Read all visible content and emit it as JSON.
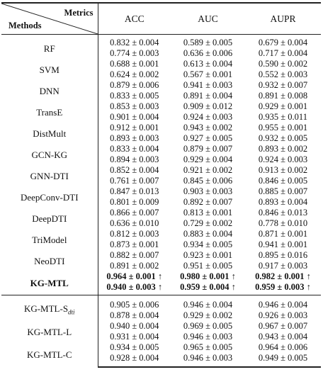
{
  "header": {
    "metrics_label": "Metrics",
    "methods_label": "Methods",
    "columns": [
      "ACC",
      "AUC",
      "AUPR"
    ]
  },
  "main_rows": [
    {
      "method": "RF",
      "values": [
        [
          "0.832 ± 0.004",
          "0.589 ± 0.005",
          "0.679 ± 0.004"
        ],
        [
          "0.774 ± 0.003",
          "0.636 ± 0.006",
          "0.717 ± 0.004"
        ]
      ]
    },
    {
      "method": "SVM",
      "values": [
        [
          "0.688 ± 0.001",
          "0.613 ± 0.004",
          "0.590 ± 0.002"
        ],
        [
          "0.624 ± 0.002",
          "0.567 ± 0.001",
          "0.552 ± 0.003"
        ]
      ]
    },
    {
      "method": "DNN",
      "values": [
        [
          "0.879 ± 0.006",
          "0.941 ± 0.003",
          "0.932 ± 0.007"
        ],
        [
          "0.833 ± 0.005",
          "0.891 ± 0.004",
          "0.891 ± 0.008"
        ]
      ]
    },
    {
      "method": "TransE",
      "values": [
        [
          "0.853 ± 0.003",
          "0.909 ± 0.012",
          "0.929 ± 0.001"
        ],
        [
          "0.901 ± 0.004",
          "0.924 ± 0.003",
          "0.935 ± 0.011"
        ]
      ]
    },
    {
      "method": "DistMult",
      "values": [
        [
          "0.912 ± 0.001",
          "0.943 ± 0.002",
          "0.955 ± 0.001"
        ],
        [
          "0.893 ± 0.003",
          "0.927 ± 0.005",
          "0.932 ± 0.005"
        ]
      ]
    },
    {
      "method": "GCN-KG",
      "values": [
        [
          "0.833 ± 0.004",
          "0.879 ± 0.007",
          "0.893 ± 0.002"
        ],
        [
          "0.894 ± 0.003",
          "0.929 ± 0.004",
          "0.924 ± 0.003"
        ]
      ]
    },
    {
      "method": "GNN-DTI",
      "values": [
        [
          "0.852 ± 0.004",
          "0.921 ± 0.002",
          "0.913 ± 0.002"
        ],
        [
          "0.761 ± 0.007",
          "0.845 ± 0.006",
          "0.846 ± 0.005"
        ]
      ]
    },
    {
      "method": "DeepConv-DTI",
      "values": [
        [
          "0.847 ± 0.013",
          "0.903 ± 0.003",
          "0.885 ± 0.007"
        ],
        [
          "0.801 ± 0.009",
          "0.892 ± 0.007",
          "0.893 ± 0.004"
        ]
      ]
    },
    {
      "method": "DeepDTI",
      "values": [
        [
          "0.866 ± 0.007",
          "0.813 ± 0.001",
          "0.846 ± 0.013"
        ],
        [
          "0.636 ± 0.010",
          "0.729 ± 0.002",
          "0.778 ± 0.010"
        ]
      ]
    },
    {
      "method": "TriModel",
      "values": [
        [
          "0.812 ± 0.003",
          "0.883 ± 0.004",
          "0.871 ± 0.001"
        ],
        [
          "0.873 ± 0.001",
          "0.934 ± 0.005",
          "0.941 ± 0.001"
        ]
      ]
    },
    {
      "method": "NeoDTI",
      "values": [
        [
          "0.882 ± 0.007",
          "0.923 ± 0.001",
          "0.895 ± 0.016"
        ],
        [
          "0.891 ± 0.002",
          "0.951 ± 0.005",
          "0.917 ± 0.003"
        ]
      ]
    },
    {
      "method": "KG-MTL",
      "bold": true,
      "values": [
        [
          "0.964 ± 0.001 ↑",
          "0.980 ± 0.001 ↑",
          "0.982 ± 0.001 ↑"
        ],
        [
          "0.940 ± 0.003 ↑",
          "0.959 ± 0.004 ↑",
          "0.959 ± 0.003 ↑"
        ]
      ]
    }
  ],
  "ablation_rows": [
    {
      "method": "KG-MTL-S",
      "subscript": "dti",
      "values": [
        [
          "0.905 ± 0.006",
          "0.946 ± 0.004",
          "0.946 ± 0.004"
        ],
        [
          "0.878 ± 0.004",
          "0.929 ± 0.002",
          "0.926 ± 0.003"
        ]
      ]
    },
    {
      "method": "KG-MTL-L",
      "values": [
        [
          "0.940 ± 0.004",
          "0.969 ± 0.005",
          "0.967 ± 0.007"
        ],
        [
          "0.931 ± 0.004",
          "0.946 ± 0.003",
          "0.943 ± 0.004"
        ]
      ]
    },
    {
      "method": "KG-MTL-C",
      "values": [
        [
          "0.934 ± 0.005",
          "0.965 ± 0.005",
          "0.964 ± 0.006"
        ],
        [
          "0.928 ± 0.004",
          "0.946 ± 0.003",
          "0.949 ± 0.005"
        ]
      ]
    }
  ]
}
